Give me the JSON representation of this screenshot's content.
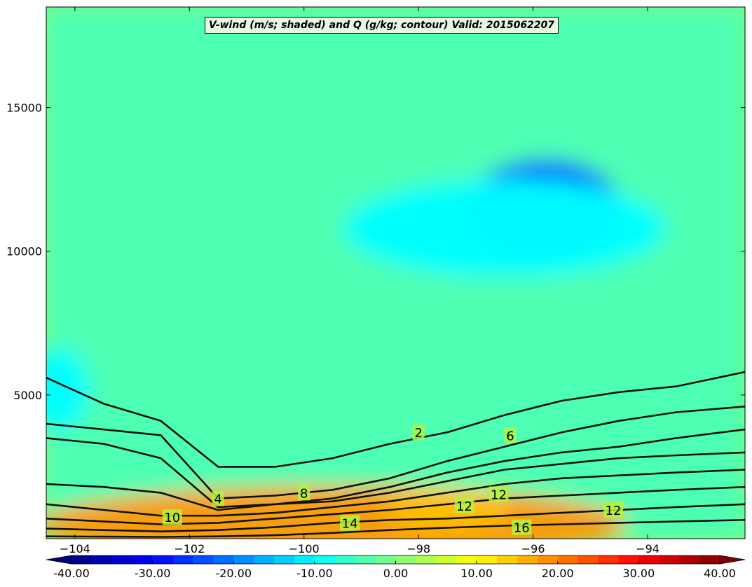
{
  "chart_data": {
    "type": "heatmap",
    "title": "V-wind (m/s; shaded) and Q (g/kg; contour) Valid: 2015062207",
    "xlabel": "",
    "ylabel": "",
    "xlim": [
      -104.5,
      -92.3
    ],
    "ylim": [
      0,
      18500
    ],
    "x_ticks": [
      -104,
      -102,
      -100,
      -98,
      -96,
      -94
    ],
    "x_tick_labels": [
      "−104",
      "−102",
      "−100",
      "−98",
      "−96",
      "−94"
    ],
    "y_ticks": [
      5000,
      10000,
      15000
    ],
    "y_tick_labels": [
      "5000",
      "10000",
      "15000"
    ],
    "shaded_field": {
      "name": "V-wind (m/s)",
      "colorbar_range": [
        -40,
        40
      ],
      "colorbar_ticks": [
        -40,
        -30,
        -20,
        -10,
        0,
        10,
        20,
        30,
        40
      ],
      "colorbar_tick_labels": [
        "-40.00",
        "-30.00",
        "-20.00",
        "-10.00",
        "0.00",
        "10.00",
        "20.00",
        "30.00",
        "40.00"
      ],
      "colorbar_extend": "both",
      "features": [
        {
          "description": "negative core",
          "x": -95.8,
          "y": 11500,
          "value": -22
        },
        {
          "description": "negative region",
          "x": -96.5,
          "y": 10800,
          "value": -10
        },
        {
          "description": "negative patch",
          "x": -104.3,
          "y": 5200,
          "value": -10
        },
        {
          "description": "low-level positive band",
          "x": -99.5,
          "y": 500,
          "value": 18
        },
        {
          "description": "positive patch",
          "x": -97.5,
          "y": 1000,
          "value": 15
        }
      ],
      "background_value": -4
    },
    "contours": [
      {
        "level": 2,
        "x": [
          -104.5,
          -103.5,
          -102.5,
          -101.5,
          -100.5,
          -99.5,
          -98.5,
          -97.5,
          -96.5,
          -95.5,
          -94.5,
          -93.5,
          -92.3
        ],
        "y": [
          5600,
          4700,
          4100,
          2500,
          2500,
          2800,
          3300,
          3700,
          4300,
          4800,
          5100,
          5300,
          5800
        ]
      },
      {
        "level": 4,
        "x": [
          -104.5,
          -103.5,
          -102.5,
          -101.5,
          -100.5,
          -99.5,
          -98.5,
          -97.5,
          -96.5,
          -95.5,
          -94.5,
          -93.5,
          -92.3
        ],
        "y": [
          4000,
          3800,
          3600,
          1400,
          1500,
          1700,
          2100,
          2700,
          3200,
          3700,
          4100,
          4400,
          4600
        ]
      },
      {
        "level": 6,
        "x": [
          -104.5,
          -103.5,
          -102.5,
          -101.5,
          -100.5,
          -99.5,
          -98.5,
          -97.5,
          -96.5,
          -95.5,
          -94.5,
          -93.5,
          -92.3
        ],
        "y": [
          3500,
          3300,
          2800,
          1100,
          1200,
          1400,
          1800,
          2300,
          2700,
          3000,
          3200,
          3500,
          3800
        ]
      },
      {
        "level": 8,
        "x": [
          -104.5,
          -103.5,
          -102.5,
          -101.5,
          -100.5,
          -99.5,
          -98.5,
          -97.5,
          -96.5,
          -95.5,
          -94.5,
          -93.5,
          -92.3
        ],
        "y": [
          1900,
          1800,
          1600,
          1000,
          1200,
          1300,
          1600,
          2000,
          2400,
          2600,
          2800,
          2900,
          3000
        ]
      },
      {
        "level": 10,
        "x": [
          -104.5,
          -103.5,
          -102.5,
          -101.5,
          -100.5,
          -99.5,
          -98.5,
          -97.5,
          -96.5,
          -95.5,
          -94.5,
          -93.5,
          -92.3
        ],
        "y": [
          1200,
          1000,
          800,
          800,
          900,
          1100,
          1300,
          1600,
          1900,
          2100,
          2200,
          2300,
          2400
        ]
      },
      {
        "level": 12,
        "x": [
          -104.5,
          -103.5,
          -102.5,
          -101.5,
          -100.5,
          -99.5,
          -98.5,
          -97.5,
          -96.5,
          -95.5,
          -94.5,
          -93.5,
          -92.3
        ],
        "y": [
          700,
          600,
          500,
          550,
          700,
          850,
          1000,
          1200,
          1400,
          1500,
          1600,
          1700,
          1800
        ]
      },
      {
        "level": 14,
        "x": [
          -104.5,
          -103.5,
          -102.5,
          -101.5,
          -100.5,
          -99.5,
          -98.5,
          -97.5,
          -96.5,
          -95.5,
          -94.5,
          -93.5,
          -92.3
        ],
        "y": [
          350,
          300,
          250,
          300,
          400,
          550,
          650,
          700,
          800,
          900,
          1000,
          1100,
          1200
        ]
      },
      {
        "level": 16,
        "x": [
          -104.5,
          -103.5,
          -102.5,
          -101.5,
          -100.5,
          -99.5,
          -98.5,
          -97.5,
          -96.5,
          -95.5,
          -94.5,
          -93.5,
          -92.3
        ],
        "y": [
          80,
          70,
          60,
          80,
          120,
          200,
          300,
          380,
          450,
          500,
          550,
          600,
          650
        ]
      }
    ],
    "contour_labels": [
      {
        "text": "2",
        "x": -98.0,
        "y": 3700
      },
      {
        "text": "6",
        "x": -96.4,
        "y": 3600
      },
      {
        "text": "4",
        "x": -101.5,
        "y": 1400
      },
      {
        "text": "8",
        "x": -100.0,
        "y": 1600
      },
      {
        "text": "12",
        "x": -96.6,
        "y": 1550
      },
      {
        "text": "10",
        "x": -102.3,
        "y": 750
      },
      {
        "text": "12",
        "x": -97.2,
        "y": 1150
      },
      {
        "text": "14",
        "x": -99.2,
        "y": 550
      },
      {
        "text": "16",
        "x": -96.2,
        "y": 400
      },
      {
        "text": "12",
        "x": -94.6,
        "y": 1000
      }
    ]
  }
}
